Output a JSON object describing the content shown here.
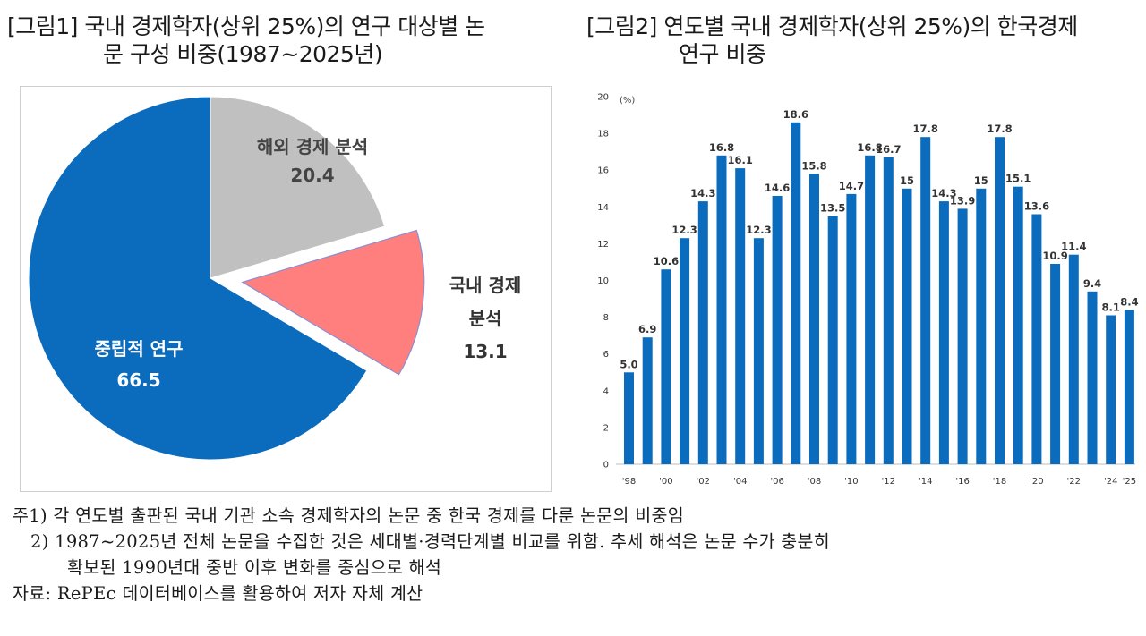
{
  "figure1": {
    "title_line1": "[그림1] 국내 경제학자(상위 25%)의 연구 대상별 논",
    "title_line2": "문 구성 비중(1987~2025년)"
  },
  "figure2": {
    "title_line1": "[그림2] 연도별 국내 경제학자(상위 25%)의 한국경제",
    "title_line2": "연구 비중"
  },
  "chart_data": [
    {
      "type": "pie",
      "slices": [
        {
          "label": "해외 경제 분석",
          "value": 20.4,
          "color": "#c0c0c0",
          "text_color": "#444444"
        },
        {
          "label": "국내 경제 분석",
          "value": 13.1,
          "color": "#ff7f7f",
          "text_color": "#333333",
          "exploded": true
        },
        {
          "label": "중립적 연구",
          "value": 66.5,
          "color": "#0b6bbd",
          "text_color": "#ffffff"
        }
      ],
      "display_labels": {
        "foreign": "해외 경제 분석",
        "foreign_value": "20.4",
        "domestic_line1": "국내 경제",
        "domestic_line2": "분석",
        "domestic_value": "13.1",
        "neutral": "중립적 연구",
        "neutral_value": "66.5"
      }
    },
    {
      "type": "bar",
      "unit_label": "(%)",
      "ylim": [
        0,
        20
      ],
      "yticks": [
        0,
        2,
        4,
        6,
        8,
        10,
        12,
        14,
        16,
        18,
        20
      ],
      "bar_color": "#0b6bbd",
      "years": [
        1998,
        1999,
        2000,
        2001,
        2002,
        2003,
        2004,
        2005,
        2006,
        2007,
        2008,
        2009,
        2010,
        2011,
        2012,
        2013,
        2014,
        2015,
        2016,
        2017,
        2018,
        2019,
        2020,
        2021,
        2022,
        2023,
        2024,
        2025
      ],
      "values": [
        5.0,
        6.9,
        10.6,
        12.3,
        14.3,
        16.8,
        16.1,
        12.3,
        14.6,
        18.6,
        15.8,
        13.5,
        14.7,
        16.8,
        16.7,
        15,
        17.8,
        14.3,
        13.9,
        15,
        17.8,
        15.1,
        13.6,
        10.9,
        11.4,
        9.4,
        8.1,
        8.4
      ],
      "value_labels": [
        "5.0",
        "6.9",
        "10.6",
        "12.3",
        "14.3",
        "16.8",
        "16.1",
        "12.3",
        "14.6",
        "18.6",
        "15.8",
        "13.5",
        "14.7",
        "16.8",
        "16.7",
        "15",
        "17.8",
        "14.3",
        "13.9",
        "15",
        "17.8",
        "15.1",
        "13.6",
        "10.9",
        "11.4",
        "9.4",
        "8.1",
        "8.4"
      ],
      "x_tick_labels": [
        {
          "year": 1998,
          "label": "'98"
        },
        {
          "year": 2000,
          "label": "'00"
        },
        {
          "year": 2002,
          "label": "'02"
        },
        {
          "year": 2004,
          "label": "'04"
        },
        {
          "year": 2006,
          "label": "'06"
        },
        {
          "year": 2008,
          "label": "'08"
        },
        {
          "year": 2010,
          "label": "'10"
        },
        {
          "year": 2012,
          "label": "'12"
        },
        {
          "year": 2014,
          "label": "'14"
        },
        {
          "year": 2016,
          "label": "'16"
        },
        {
          "year": 2018,
          "label": "'18"
        },
        {
          "year": 2020,
          "label": "'20"
        },
        {
          "year": 2022,
          "label": "'22"
        },
        {
          "year": 2024,
          "label": "'24"
        },
        {
          "year": 2025,
          "label": "'25"
        }
      ]
    }
  ],
  "notes": {
    "line1": "주1) 각 연도별 출판된 국내 기관 소속 경제학자의 논문 중 한국 경제를 다룬 논문의 비중임",
    "line2": "2) 1987~2025년 전체 논문을 수집한 것은 세대별·경력단계별 비교를 위함. 추세 해석은 논문 수가 충분히",
    "line3": "확보된 1990년대 중반 이후 변화를 중심으로 해석",
    "line4": "자료: RePEc 데이터베이스를 활용하여 저자 자체 계산"
  }
}
